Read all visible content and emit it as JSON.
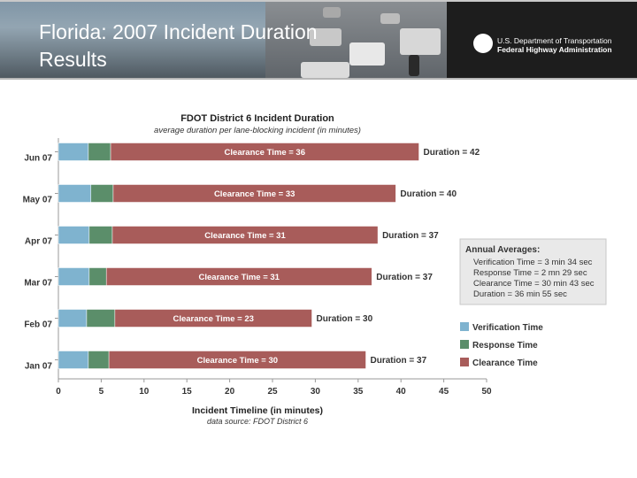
{
  "slide": {
    "title_line1": "Florida:  2007 Incident Duration",
    "title_line2": "Results",
    "logo_line1": "U.S. Department of Transportation",
    "logo_line2": "Federal Highway Administration"
  },
  "chart_data": {
    "type": "bar",
    "orientation": "horizontal",
    "stacked": true,
    "title": "FDOT District 6 Incident Duration",
    "subtitle": "average duration per lane-blocking incident (in minutes)",
    "xlabel": "Incident Timeline (in minutes)",
    "source_note": "data source: FDOT District 6",
    "xlim": [
      0,
      50
    ],
    "xticks": [
      0,
      5,
      10,
      15,
      20,
      25,
      30,
      35,
      40,
      45,
      50
    ],
    "categories": [
      "Jun 07",
      "May 07",
      "Apr 07",
      "Mar 07",
      "Feb 07",
      "Jan 07"
    ],
    "series": [
      {
        "name": "Verification Time",
        "color": "#7fb3cf",
        "values": [
          3.5,
          3.8,
          3.6,
          3.6,
          3.3,
          3.5
        ]
      },
      {
        "name": "Response Time",
        "color": "#5b8e6a",
        "values": [
          2.6,
          2.6,
          2.7,
          2.0,
          3.3,
          2.4
        ]
      },
      {
        "name": "Clearance Time",
        "color": "#a85c5a",
        "values": [
          36,
          33,
          31,
          31,
          23,
          30
        ]
      }
    ],
    "bar_labels": [
      "Clearance Time = 36",
      "Clearance Time = 33",
      "Clearance Time = 31",
      "Clearance Time = 31",
      "Clearance Time = 23",
      "Clearance Time = 30"
    ],
    "duration_labels": [
      "Duration = 42",
      "Duration = 40",
      "Duration = 37",
      "Duration = 37",
      "Duration = 30",
      "Duration = 37"
    ],
    "annual_averages": {
      "title": "Annual Averages:",
      "lines": [
        "Verification Time = 3 min 34 sec",
        "Response Time = 2 mn 29 sec",
        "Clearance Time = 30 min 43 sec",
        "Duration = 36 min 55 sec"
      ]
    },
    "legend_position": "right"
  }
}
